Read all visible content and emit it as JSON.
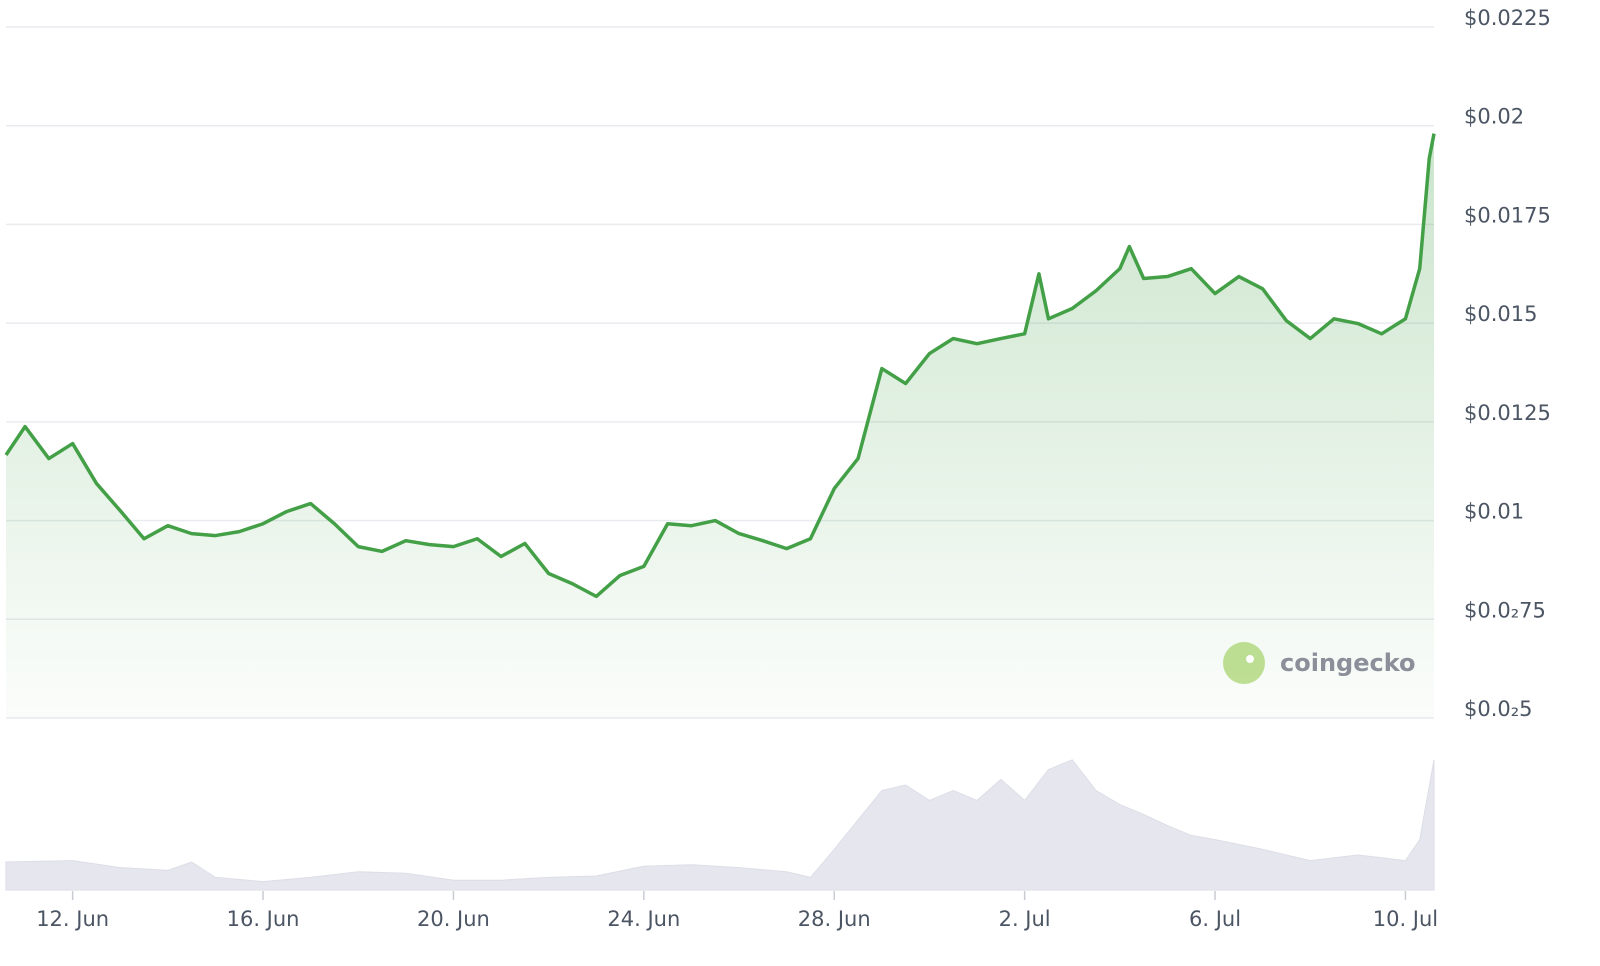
{
  "chart_data": [
    {
      "type": "line",
      "color": "#43a047",
      "x": [
        10.6,
        11.0,
        11.5,
        12.0,
        12.5,
        13.0,
        13.5,
        14.0,
        14.5,
        15.0,
        15.5,
        16.0,
        16.5,
        17.0,
        17.5,
        18.0,
        18.5,
        19.0,
        19.5,
        20.0,
        20.5,
        21.0,
        21.5,
        22.0,
        22.5,
        23.0,
        23.5,
        24.0,
        24.5,
        25.0,
        25.5,
        26.0,
        26.5,
        27.0,
        27.5,
        28.0,
        28.5,
        29.0,
        29.5,
        30.0,
        30.5,
        31.0,
        31.5,
        32.0,
        32.3,
        32.5,
        33.0,
        33.5,
        34.0,
        34.2,
        34.5,
        35.0,
        35.5,
        36.0,
        36.5,
        37.0,
        37.5,
        38.0,
        38.5,
        39.0,
        39.5,
        40.0,
        40.3,
        40.5,
        40.6
      ],
      "values": [
        0.01166,
        0.01238,
        0.01157,
        0.01195,
        0.01094,
        0.01025,
        0.00954,
        0.00987,
        0.00967,
        0.00962,
        0.00972,
        0.00992,
        0.01023,
        0.01043,
        0.00992,
        0.00934,
        0.00922,
        0.00949,
        0.00939,
        0.00934,
        0.00954,
        0.00909,
        0.00942,
        0.00866,
        0.0084,
        0.00808,
        0.00861,
        0.00884,
        0.00992,
        0.00987,
        0.01,
        0.00967,
        0.00949,
        0.00929,
        0.00954,
        0.01081,
        0.01157,
        0.01385,
        0.01347,
        0.01423,
        0.01461,
        0.01448,
        0.01461,
        0.01473,
        0.01625,
        0.01511,
        0.01537,
        0.01582,
        0.01638,
        0.01694,
        0.01613,
        0.01618,
        0.01638,
        0.01575,
        0.01618,
        0.01587,
        0.01506,
        0.01461,
        0.01511,
        0.01499,
        0.01473,
        0.01511,
        0.01638,
        0.01917,
        0.0198
      ],
      "xlim": [
        10.6,
        40.6
      ],
      "xticks": [
        {
          "value": 12,
          "label": "12. Jun"
        },
        {
          "value": 16,
          "label": "16. Jun"
        },
        {
          "value": 20,
          "label": "20. Jun"
        },
        {
          "value": 24,
          "label": "24. Jun"
        },
        {
          "value": 28,
          "label": "28. Jun"
        },
        {
          "value": 32,
          "label": "2. Jul"
        },
        {
          "value": 36,
          "label": "6. Jul"
        },
        {
          "value": 40,
          "label": "10. Jul"
        }
      ],
      "ylim": [
        0.005,
        0.0225
      ],
      "yticks": [
        {
          "value": 0.005,
          "label": "$0.0₂5"
        },
        {
          "value": 0.0075,
          "label": "$0.0₂75"
        },
        {
          "value": 0.01,
          "label": "$0.01"
        },
        {
          "value": 0.0125,
          "label": "$0.0125"
        },
        {
          "value": 0.015,
          "label": "$0.015"
        },
        {
          "value": 0.0175,
          "label": "$0.0175"
        },
        {
          "value": 0.02,
          "label": "$0.02"
        },
        {
          "value": 0.0225,
          "label": "$0.0225"
        }
      ],
      "grid": true,
      "watermark": "coingecko"
    },
    {
      "type": "area",
      "color": "#e6e7ee",
      "x": [
        10.6,
        12.0,
        13.0,
        14.0,
        14.5,
        15.0,
        16.0,
        17.0,
        18.0,
        19.0,
        20.0,
        21.0,
        22.0,
        23.0,
        24.0,
        25.0,
        26.0,
        27.0,
        27.5,
        28.0,
        28.5,
        29.0,
        29.5,
        30.0,
        30.5,
        31.0,
        31.5,
        32.0,
        32.5,
        33.0,
        33.5,
        34.0,
        34.5,
        35.0,
        35.5,
        36.0,
        37.0,
        38.0,
        39.0,
        39.5,
        40.0,
        40.3,
        40.6
      ],
      "values": [
        20,
        21,
        16,
        14,
        20,
        9,
        6,
        9,
        13,
        12,
        7,
        7,
        9,
        10,
        17,
        18,
        16,
        13,
        9,
        29,
        50,
        71,
        75,
        64,
        71,
        64,
        79,
        64,
        86,
        93,
        71,
        61,
        54,
        46,
        39,
        36,
        29,
        21,
        25,
        23,
        21,
        36,
        93
      ],
      "xlim": [
        10.6,
        40.6
      ],
      "ylim": [
        0,
        100
      ]
    }
  ]
}
